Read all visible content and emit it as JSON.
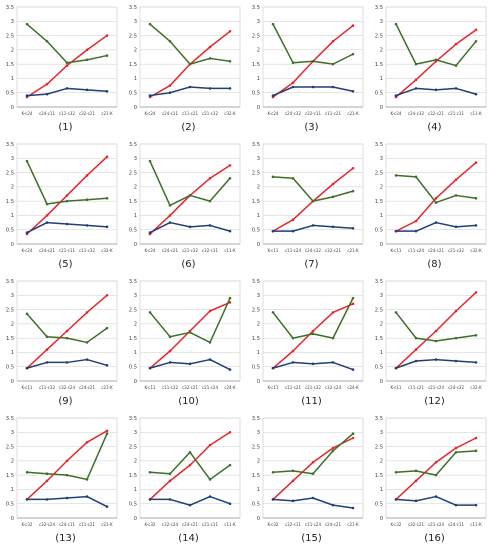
{
  "figure": {
    "colors": {
      "red": "#e8262b",
      "green": "#3e6f2a",
      "blue": "#1f3f77",
      "grid": "#d6d6d6",
      "axis": "#444444"
    }
  },
  "chart_data": [
    {
      "type": "line",
      "caption": "(1)",
      "categories": [
        "K-c24",
        "c24-c11",
        "c11-c32",
        "c32-c21",
        "c21-K"
      ],
      "ylim": [
        0,
        3.5
      ],
      "yticks": [
        0,
        0.5,
        1,
        1.5,
        2,
        2.5,
        3,
        3.5
      ],
      "ytick_labels": [
        "0",
        "0.5",
        "1",
        "1.5",
        "2",
        "2.5",
        "3",
        "3.5"
      ],
      "grid": true,
      "series": [
        {
          "color": "red",
          "values": [
            0.35,
            0.8,
            1.45,
            2.0,
            2.5
          ]
        },
        {
          "color": "green",
          "values": [
            2.9,
            2.3,
            1.55,
            1.65,
            1.8
          ]
        },
        {
          "color": "blue",
          "values": [
            0.4,
            0.45,
            0.65,
            0.6,
            0.55
          ]
        }
      ]
    },
    {
      "type": "line",
      "caption": "(2)",
      "categories": [
        "K-c24",
        "c24-c11",
        "c11-c21",
        "c21-c32",
        "c32-K"
      ],
      "ylim": [
        0,
        3.5
      ],
      "yticks": [
        0,
        0.5,
        1,
        1.5,
        2,
        2.5,
        3,
        3.5
      ],
      "ytick_labels": [
        "0",
        "0.5",
        "1",
        "1.5",
        "2",
        "2.5",
        "3",
        "3.5"
      ],
      "grid": true,
      "series": [
        {
          "color": "red",
          "values": [
            0.35,
            0.75,
            1.5,
            2.1,
            2.65
          ]
        },
        {
          "color": "green",
          "values": [
            2.9,
            2.3,
            1.5,
            1.7,
            1.6
          ]
        },
        {
          "color": "blue",
          "values": [
            0.4,
            0.5,
            0.7,
            0.65,
            0.65
          ]
        }
      ]
    },
    {
      "type": "line",
      "caption": "(3)",
      "categories": [
        "K-c24",
        "c24-c32",
        "c32-c11",
        "c11-c21",
        "c21-K"
      ],
      "ylim": [
        0,
        3.5
      ],
      "yticks": [
        0,
        0.5,
        1,
        1.5,
        2,
        2.5,
        3,
        3.5
      ],
      "ytick_labels": [
        "0",
        "0.5",
        "1",
        "1.5",
        "2",
        "2.5",
        "3",
        "3.5"
      ],
      "grid": true,
      "series": [
        {
          "color": "red",
          "values": [
            0.35,
            0.85,
            1.6,
            2.3,
            2.85
          ]
        },
        {
          "color": "green",
          "values": [
            2.9,
            1.55,
            1.6,
            1.5,
            1.85
          ]
        },
        {
          "color": "blue",
          "values": [
            0.4,
            0.7,
            0.7,
            0.7,
            0.55
          ]
        }
      ]
    },
    {
      "type": "line",
      "caption": "(4)",
      "categories": [
        "K-c24",
        "c24-c32",
        "c32-c21",
        "c21-c11",
        "c11-K"
      ],
      "ylim": [
        0,
        3.5
      ],
      "yticks": [
        0,
        0.5,
        1,
        1.5,
        2,
        2.5,
        3,
        3.5
      ],
      "ytick_labels": [
        "0",
        "0.5",
        "1",
        "1.5",
        "2",
        "2.5",
        "3",
        "3.5"
      ],
      "grid": true,
      "series": [
        {
          "color": "red",
          "values": [
            0.35,
            0.95,
            1.6,
            2.2,
            2.7
          ]
        },
        {
          "color": "green",
          "values": [
            2.9,
            1.5,
            1.65,
            1.45,
            2.3
          ]
        },
        {
          "color": "blue",
          "values": [
            0.4,
            0.65,
            0.6,
            0.65,
            0.45
          ]
        }
      ]
    },
    {
      "type": "line",
      "caption": "(5)",
      "categories": [
        "K-c24",
        "c24-c21",
        "c21-c11",
        "c11-c32",
        "c32-K"
      ],
      "ylim": [
        0,
        3.5
      ],
      "yticks": [
        0,
        0.5,
        1,
        1.5,
        2,
        2.5,
        3,
        3.5
      ],
      "ytick_labels": [
        "0",
        "0.5",
        "1",
        "1.5",
        "2",
        "2.5",
        "3",
        "3.5"
      ],
      "grid": true,
      "series": [
        {
          "color": "red",
          "values": [
            0.35,
            1.0,
            1.7,
            2.4,
            3.05
          ]
        },
        {
          "color": "green",
          "values": [
            2.9,
            1.4,
            1.5,
            1.55,
            1.6
          ]
        },
        {
          "color": "blue",
          "values": [
            0.4,
            0.75,
            0.7,
            0.65,
            0.6
          ]
        }
      ]
    },
    {
      "type": "line",
      "caption": "(6)",
      "categories": [
        "K-c24",
        "c24-c21",
        "c21-c32",
        "c32-c11",
        "c11-K"
      ],
      "ylim": [
        0,
        3.5
      ],
      "yticks": [
        0,
        0.5,
        1,
        1.5,
        2,
        2.5,
        3,
        3.5
      ],
      "ytick_labels": [
        "0",
        "0.5",
        "1",
        "1.5",
        "2",
        "2.5",
        "3",
        "3.5"
      ],
      "grid": true,
      "series": [
        {
          "color": "red",
          "values": [
            0.35,
            1.0,
            1.7,
            2.3,
            2.75
          ]
        },
        {
          "color": "green",
          "values": [
            2.9,
            1.35,
            1.7,
            1.5,
            2.3
          ]
        },
        {
          "color": "blue",
          "values": [
            0.4,
            0.75,
            0.6,
            0.65,
            0.45
          ]
        }
      ]
    },
    {
      "type": "line",
      "caption": "(7)",
      "categories": [
        "K-c11",
        "c11-c24",
        "c24-c32",
        "c32-c21",
        "c21-K"
      ],
      "ylim": [
        0,
        3.5
      ],
      "yticks": [
        0,
        0.5,
        1,
        1.5,
        2,
        2.5,
        3,
        3.5
      ],
      "ytick_labels": [
        "0",
        "0.5",
        "1",
        "1.5",
        "2",
        "2.5",
        "3",
        "3.5"
      ],
      "grid": true,
      "series": [
        {
          "color": "red",
          "values": [
            0.45,
            0.85,
            1.5,
            2.1,
            2.65
          ]
        },
        {
          "color": "green",
          "values": [
            2.35,
            2.3,
            1.5,
            1.65,
            1.85
          ]
        },
        {
          "color": "blue",
          "values": [
            0.45,
            0.45,
            0.65,
            0.6,
            0.55
          ]
        }
      ]
    },
    {
      "type": "line",
      "caption": "(8)",
      "categories": [
        "K-c11",
        "c11-c24",
        "c24-c21",
        "c21-c32",
        "c32-K"
      ],
      "ylim": [
        0,
        3.5
      ],
      "yticks": [
        0,
        0.5,
        1,
        1.5,
        2,
        2.5,
        3,
        3.5
      ],
      "ytick_labels": [
        "0",
        "0.5",
        "1",
        "1.5",
        "2",
        "2.5",
        "3",
        "3.5"
      ],
      "grid": true,
      "series": [
        {
          "color": "red",
          "values": [
            0.45,
            0.8,
            1.6,
            2.25,
            2.85
          ]
        },
        {
          "color": "green",
          "values": [
            2.4,
            2.35,
            1.45,
            1.7,
            1.6
          ]
        },
        {
          "color": "blue",
          "values": [
            0.45,
            0.45,
            0.75,
            0.6,
            0.65
          ]
        }
      ]
    },
    {
      "type": "line",
      "caption": "(9)",
      "categories": [
        "K-c11",
        "c11-c32",
        "c32-c24",
        "c24-c21",
        "c21-K"
      ],
      "ylim": [
        0,
        3.5
      ],
      "yticks": [
        0,
        0.5,
        1,
        1.5,
        2,
        2.5,
        3,
        3.5
      ],
      "ytick_labels": [
        "0",
        "0.5",
        "1",
        "1.5",
        "2",
        "2.5",
        "3",
        "3.5"
      ],
      "grid": true,
      "series": [
        {
          "color": "red",
          "values": [
            0.45,
            1.1,
            1.75,
            2.4,
            3.0
          ]
        },
        {
          "color": "green",
          "values": [
            2.35,
            1.55,
            1.5,
            1.35,
            1.85
          ]
        },
        {
          "color": "blue",
          "values": [
            0.45,
            0.65,
            0.65,
            0.75,
            0.55
          ]
        }
      ]
    },
    {
      "type": "line",
      "caption": "(10)",
      "categories": [
        "K-c11",
        "c11-c32",
        "c32-c21",
        "c21-c24",
        "c24-K"
      ],
      "ylim": [
        0,
        3.5
      ],
      "yticks": [
        0,
        0.5,
        1,
        1.5,
        2,
        2.5,
        3,
        3.5
      ],
      "ytick_labels": [
        "0",
        "0.5",
        "1",
        "1.5",
        "2",
        "2.5",
        "3",
        "3.5"
      ],
      "grid": true,
      "series": [
        {
          "color": "red",
          "values": [
            0.45,
            1.05,
            1.75,
            2.45,
            2.75
          ]
        },
        {
          "color": "green",
          "values": [
            2.4,
            1.55,
            1.7,
            1.35,
            2.9
          ]
        },
        {
          "color": "blue",
          "values": [
            0.45,
            0.65,
            0.6,
            0.75,
            0.4
          ]
        }
      ]
    },
    {
      "type": "line",
      "caption": "(11)",
      "categories": [
        "K-c11",
        "c11-c21",
        "c21-c32",
        "c32-c24",
        "c24-K"
      ],
      "ylim": [
        0,
        3.5
      ],
      "yticks": [
        0,
        0.5,
        1,
        1.5,
        2,
        2.5,
        3,
        3.5
      ],
      "ytick_labels": [
        "0",
        "0.5",
        "1",
        "1.5",
        "2",
        "2.5",
        "3",
        "3.5"
      ],
      "grid": true,
      "series": [
        {
          "color": "red",
          "values": [
            0.45,
            1.05,
            1.75,
            2.4,
            2.7
          ]
        },
        {
          "color": "green",
          "values": [
            2.4,
            1.5,
            1.65,
            1.5,
            2.9
          ]
        },
        {
          "color": "blue",
          "values": [
            0.45,
            0.65,
            0.6,
            0.65,
            0.4
          ]
        }
      ]
    },
    {
      "type": "line",
      "caption": "(12)",
      "categories": [
        "K-c11",
        "c11-c21",
        "c21-c24",
        "c24-c32",
        "c32-K"
      ],
      "ylim": [
        0,
        3.5
      ],
      "yticks": [
        0,
        0.5,
        1,
        1.5,
        2,
        2.5,
        3,
        3.5
      ],
      "ytick_labels": [
        "0",
        "0.5",
        "1",
        "1.5",
        "2",
        "2.5",
        "3",
        "3.5"
      ],
      "grid": true,
      "series": [
        {
          "color": "red",
          "values": [
            0.45,
            1.1,
            1.75,
            2.45,
            3.1
          ]
        },
        {
          "color": "green",
          "values": [
            2.4,
            1.5,
            1.4,
            1.5,
            1.6
          ]
        },
        {
          "color": "blue",
          "values": [
            0.45,
            0.7,
            0.75,
            0.7,
            0.65
          ]
        }
      ]
    },
    {
      "type": "line",
      "caption": "(13)",
      "categories": [
        "K-c32",
        "c32-c24",
        "c24-c11",
        "c11-c21",
        "c21-K"
      ],
      "ylim": [
        0,
        3.5
      ],
      "yticks": [
        0,
        0.5,
        1,
        1.5,
        2,
        2.5,
        3,
        3.5
      ],
      "ytick_labels": [
        "0",
        "0.5",
        "1",
        "1.5",
        "2",
        "2.5",
        "3",
        "3.5"
      ],
      "grid": true,
      "series": [
        {
          "color": "red",
          "values": [
            0.65,
            1.3,
            2.0,
            2.65,
            3.05
          ]
        },
        {
          "color": "green",
          "values": [
            1.6,
            1.55,
            1.5,
            1.35,
            2.95
          ]
        },
        {
          "color": "blue",
          "values": [
            0.65,
            0.65,
            0.7,
            0.75,
            0.4
          ]
        }
      ]
    },
    {
      "type": "line",
      "caption": "(14)",
      "categories": [
        "K-c32",
        "c32-c24",
        "c24-c21",
        "c21-c11",
        "c11-K"
      ],
      "ylim": [
        0,
        3.5
      ],
      "yticks": [
        0,
        0.5,
        1,
        1.5,
        2,
        2.5,
        3,
        3.5
      ],
      "ytick_labels": [
        "0",
        "0.5",
        "1",
        "1.5",
        "2",
        "2.5",
        "3",
        "3.5"
      ],
      "grid": true,
      "series": [
        {
          "color": "red",
          "values": [
            0.65,
            1.3,
            1.85,
            2.55,
            3.0
          ]
        },
        {
          "color": "green",
          "values": [
            1.6,
            1.55,
            2.3,
            1.35,
            1.85
          ]
        },
        {
          "color": "blue",
          "values": [
            0.65,
            0.65,
            0.45,
            0.75,
            0.5
          ]
        }
      ]
    },
    {
      "type": "line",
      "caption": "(15)",
      "categories": [
        "K-c32",
        "c32-c11",
        "c11-c24",
        "c24-c21",
        "c21-K"
      ],
      "ylim": [
        0,
        3.5
      ],
      "yticks": [
        0,
        0.5,
        1,
        1.5,
        2,
        2.5,
        3,
        3.5
      ],
      "ytick_labels": [
        "0",
        "0.5",
        "1",
        "1.5",
        "2",
        "2.5",
        "3",
        "3.5"
      ],
      "grid": true,
      "series": [
        {
          "color": "red",
          "values": [
            0.65,
            1.3,
            1.95,
            2.45,
            2.8
          ]
        },
        {
          "color": "green",
          "values": [
            1.6,
            1.65,
            1.55,
            2.35,
            2.95
          ]
        },
        {
          "color": "blue",
          "values": [
            0.65,
            0.6,
            0.7,
            0.45,
            0.35
          ]
        }
      ]
    },
    {
      "type": "line",
      "caption": "(16)",
      "categories": [
        "K-c32",
        "c32-c21",
        "c21-c24",
        "c24-c11",
        "c11-K"
      ],
      "ylim": [
        0,
        3.5
      ],
      "yticks": [
        0,
        0.5,
        1,
        1.5,
        2,
        2.5,
        3,
        3.5
      ],
      "ytick_labels": [
        "0",
        "0.5",
        "1",
        "1.5",
        "2",
        "2.5",
        "3",
        "3.5"
      ],
      "grid": true,
      "series": [
        {
          "color": "red",
          "values": [
            0.65,
            1.3,
            1.95,
            2.45,
            2.8
          ]
        },
        {
          "color": "green",
          "values": [
            1.6,
            1.65,
            1.5,
            2.3,
            2.35
          ]
        },
        {
          "color": "blue",
          "values": [
            0.65,
            0.6,
            0.75,
            0.45,
            0.45
          ]
        }
      ]
    }
  ]
}
